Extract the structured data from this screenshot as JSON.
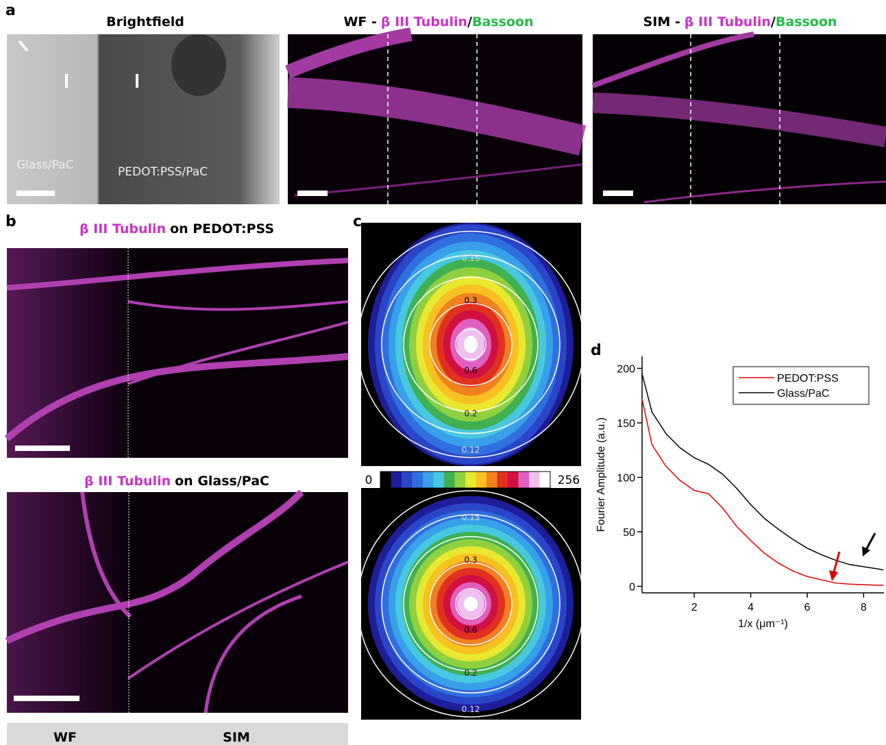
{
  "panel_a": {
    "label": "a",
    "brightfield": {
      "title": "Brightfield",
      "labels": [
        "Glass/PaC",
        "PEDOT:PSS/PaC"
      ]
    },
    "wf": {
      "title": [
        "WF -",
        "β III Tubulin",
        "/",
        "Bassoon"
      ]
    },
    "sim": {
      "title": [
        "SIM -",
        "β III Tubulin",
        "/",
        "Bassoon"
      ]
    }
  },
  "panel_b": {
    "label": "b",
    "top_title": [
      "β III Tubulin",
      "on PEDOT:PSS"
    ],
    "bottom_title": [
      "β III Tubulin",
      "on Glass/PaC"
    ],
    "footer": [
      "WF",
      "SIM"
    ]
  },
  "panel_c": {
    "label": "c",
    "top_rings": [
      "0.15",
      "0.3",
      "0.6",
      "0.2",
      "0.12"
    ],
    "bottom_rings": [
      "0.15",
      "0.3",
      "0.6",
      "0.2",
      "0.12"
    ],
    "colorbar": [
      "0",
      "256"
    ]
  },
  "panel_d": {
    "label": "d"
  },
  "chart_data": {
    "type": "line",
    "xlabel": "1/x (μm⁻¹)",
    "ylabel": "Fourier Amplitude (a.u.)",
    "x": [
      0.15,
      0.5,
      1,
      1.5,
      2,
      2.5,
      3,
      3.5,
      4,
      4.5,
      5,
      5.5,
      6,
      6.5,
      7,
      7.5,
      8,
      8.5,
      8.7
    ],
    "series": [
      {
        "name": "PEDOT:PSS",
        "color": "#e00000",
        "values": [
          172,
          130,
          110,
          97,
          88,
          85,
          72,
          55,
          42,
          30,
          21,
          14,
          9,
          6,
          3,
          2,
          1.5,
          1,
          1
        ]
      },
      {
        "name": "Glass/PaC",
        "color": "#000000",
        "values": [
          195,
          160,
          140,
          127,
          118,
          112,
          103,
          90,
          75,
          62,
          52,
          43,
          35,
          29,
          24,
          20,
          18,
          16,
          15
        ]
      }
    ],
    "xlim": [
      0.15,
      8.72
    ],
    "ylim": [
      -6,
      211
    ],
    "xticks": [
      2,
      4,
      6,
      8
    ],
    "yticks": [
      0,
      50,
      100,
      150,
      200
    ],
    "legend": "upper right"
  }
}
